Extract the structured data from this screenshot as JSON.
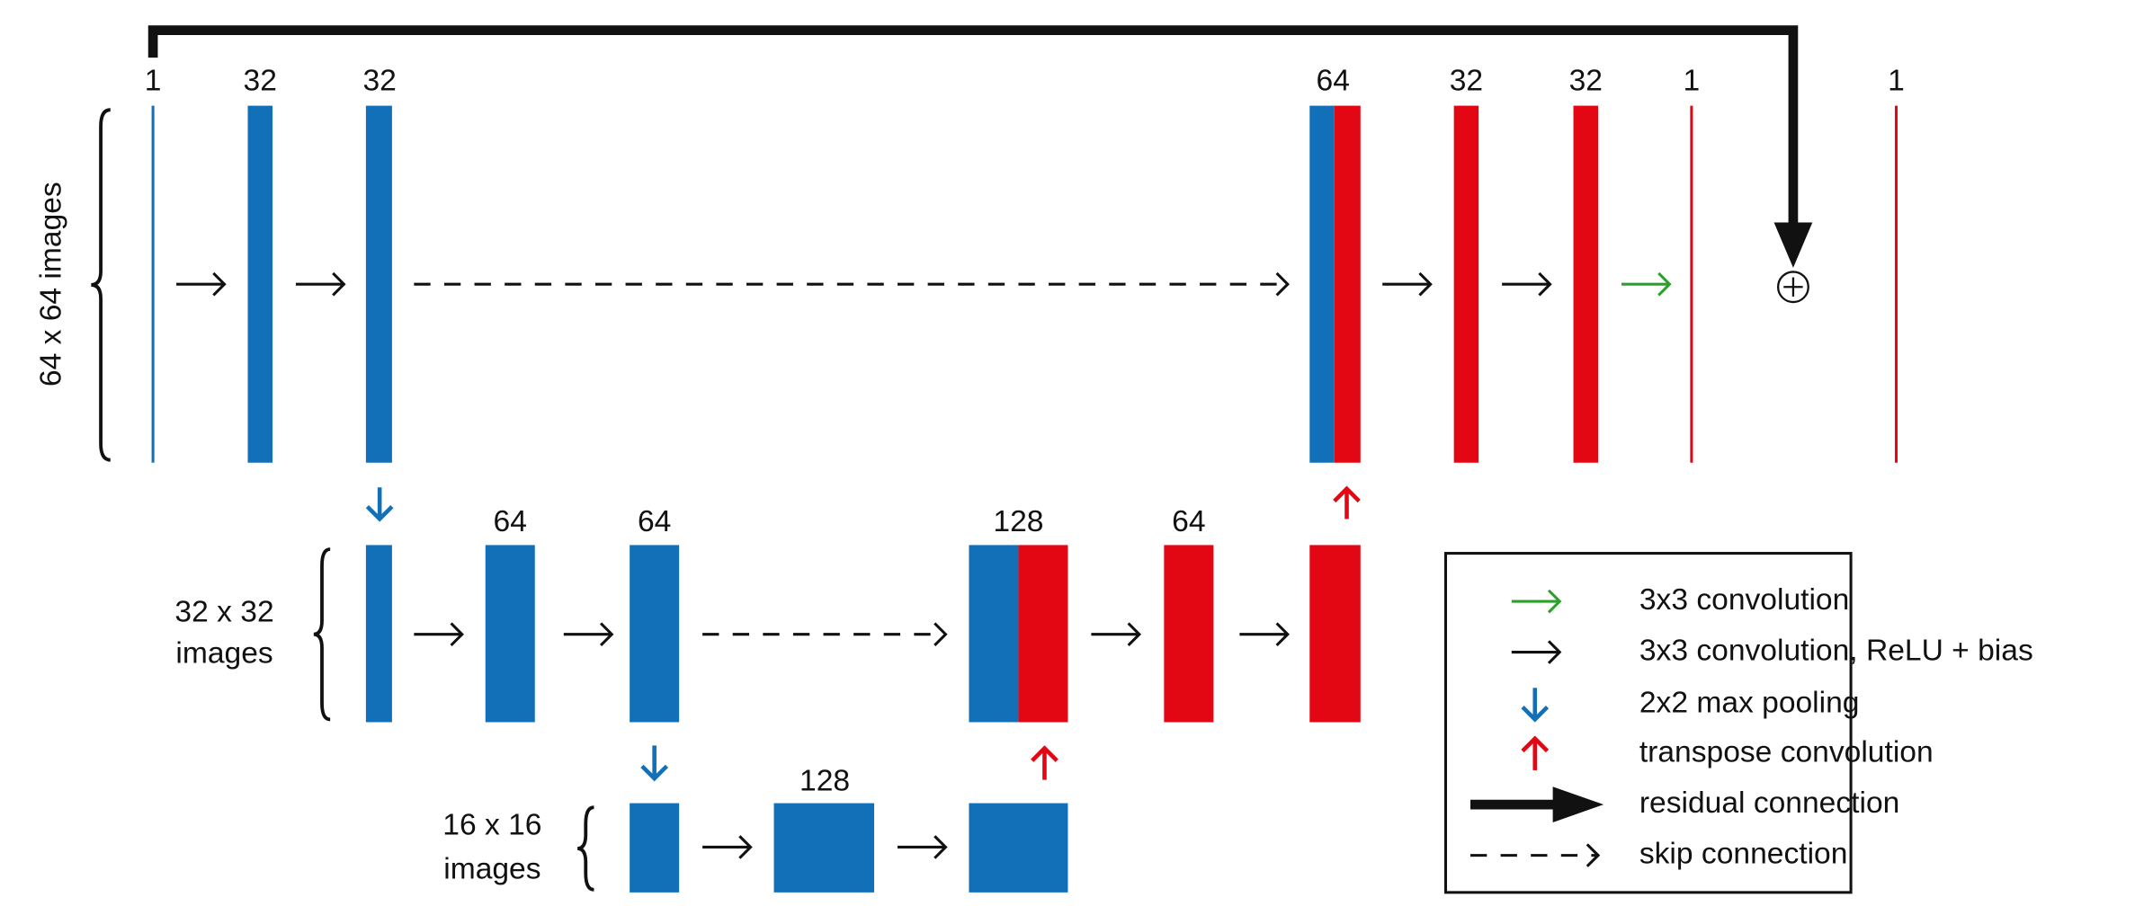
{
  "levels": [
    [
      "64 x 64 images"
    ],
    [
      "32 x 32",
      "images"
    ],
    [
      "16 x 16",
      "images"
    ]
  ],
  "top_row": [
    "1",
    "32",
    "32",
    "64",
    "32",
    "32",
    "1",
    "1"
  ],
  "middle_row": [
    "64",
    "64",
    "128",
    "64"
  ],
  "bottom_row": [
    "128"
  ],
  "legend": [
    "3x3 convolution",
    "3x3 convolution, ReLU + bias",
    "2x2 max pooling",
    "transpose convolution",
    "residual connection",
    "skip connection"
  ]
}
